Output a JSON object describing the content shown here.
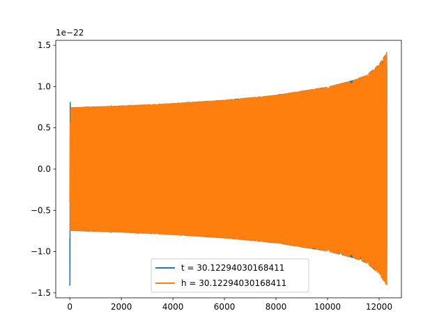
{
  "chart_data": {
    "type": "line",
    "title": "",
    "xlabel": "",
    "ylabel": "",
    "y_offset_label": "1e−22",
    "xlim": [
      -545,
      12865
    ],
    "ylim": [
      -1.56,
      1.56
    ],
    "x_ticks": [
      0,
      2000,
      4000,
      6000,
      8000,
      10000,
      12000
    ],
    "x_tick_labels": [
      "0",
      "2000",
      "4000",
      "6000",
      "8000",
      "10000",
      "12000"
    ],
    "y_ticks": [
      -1.5,
      -1.0,
      -0.5,
      0.0,
      0.5,
      1.0,
      1.5
    ],
    "y_tick_labels": [
      "−1.5",
      "−1.0",
      "−0.5",
      "0.0",
      "0.5",
      "1.0",
      "1.5"
    ],
    "grid": false,
    "legend_position": "bottom-center",
    "series": [
      {
        "name": "t = 30.12294030168411",
        "color": "#1f77b4",
        "description_points": {
          "x": [
            0,
            10,
            20,
            100,
            2000,
            4000,
            6000,
            8000,
            10000,
            11000,
            11500,
            12000,
            12300
          ],
          "envelope": [
            1.42,
            1.42,
            0.75,
            0.75,
            0.77,
            0.8,
            0.84,
            0.9,
            1.0,
            1.08,
            1.14,
            1.27,
            1.42
          ]
        }
      },
      {
        "name": "h = 30.12294030168411",
        "color": "#ff7f0e",
        "description_points": {
          "x": [
            0,
            10,
            20,
            100,
            2000,
            4000,
            6000,
            8000,
            10000,
            11000,
            11500,
            12000,
            12300
          ],
          "envelope": [
            0.5,
            0.5,
            0.75,
            0.75,
            0.77,
            0.8,
            0.84,
            0.9,
            1.0,
            1.08,
            1.14,
            1.27,
            1.42
          ]
        }
      }
    ]
  }
}
